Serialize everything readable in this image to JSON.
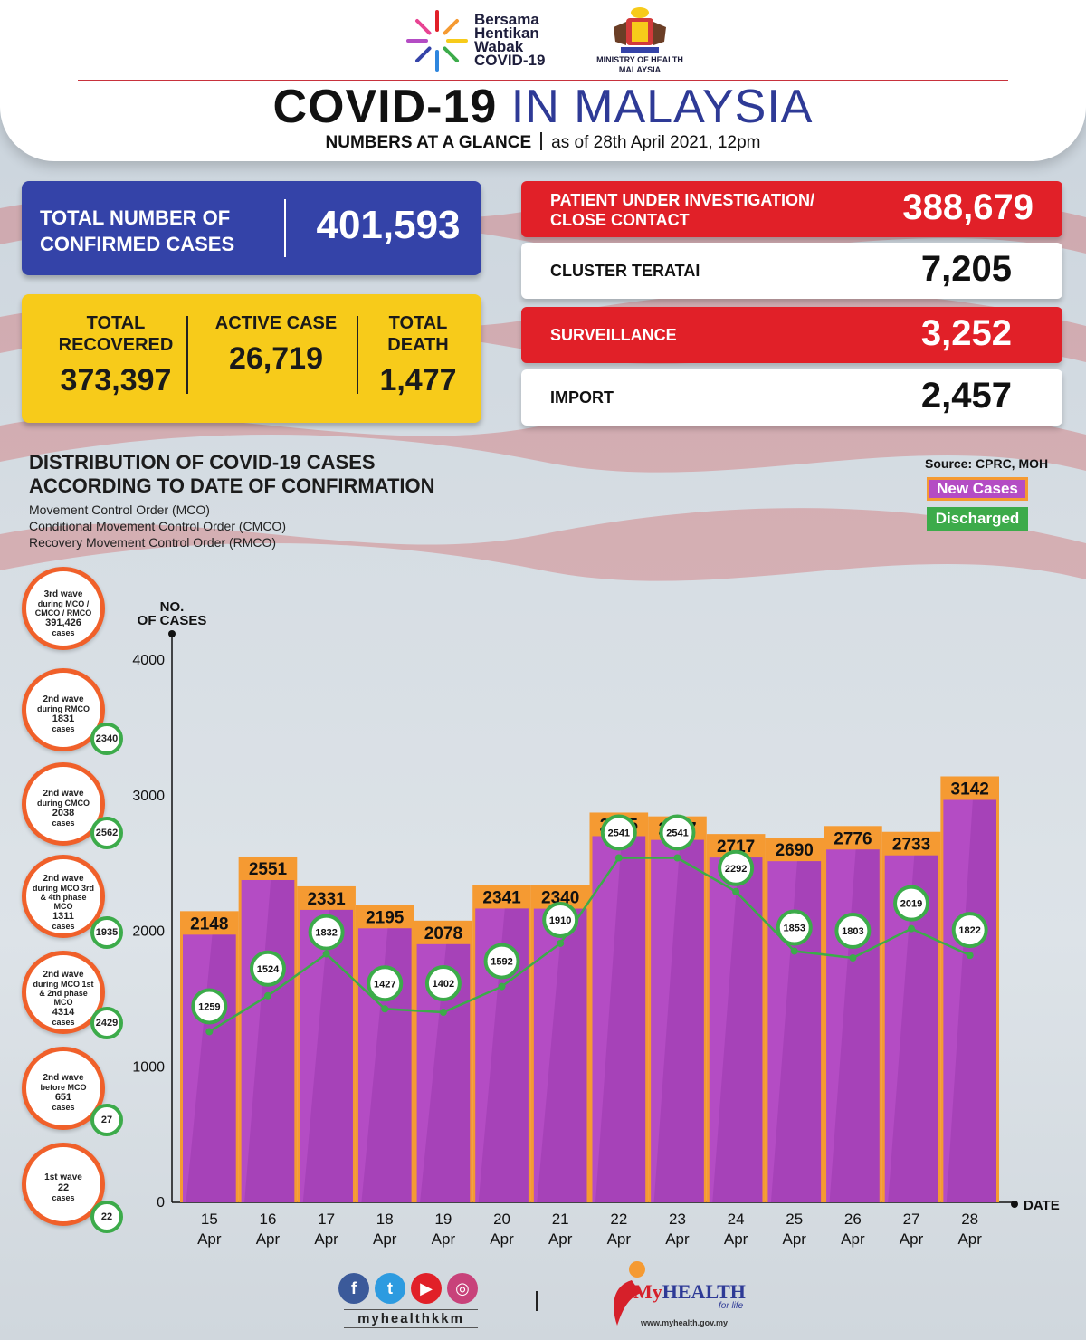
{
  "header": {
    "campaign_lines": [
      "Bersama",
      "Hentikan",
      "Wabak",
      "COVID-19"
    ],
    "ministry_lines": [
      "MINISTRY OF HEALTH",
      "MALAYSIA"
    ],
    "title_bold": "COVID-19",
    "title_light": "IN MALAYSIA",
    "subtitle_bold": "NUMBERS AT A GLANCE",
    "subtitle_date": "as of 28th April 2021, 12pm"
  },
  "confirmed": {
    "label": "TOTAL NUMBER OF CONFIRMED CASES",
    "value": "401,593"
  },
  "stats": [
    {
      "label": "TOTAL RECOVERED",
      "value": "373,397"
    },
    {
      "label": "ACTIVE CASE",
      "value": "26,719"
    },
    {
      "label": "TOTAL DEATH",
      "value": "1,477"
    }
  ],
  "right_boxes": [
    {
      "label": "PATIENT UNDER INVESTIGATION/ CLOSE CONTACT",
      "value": "388,679",
      "style": "red"
    },
    {
      "label": "CLUSTER TERATAI",
      "value": "7,205",
      "style": "white"
    },
    {
      "label": "SURVEILLANCE",
      "value": "3,252",
      "style": "red"
    },
    {
      "label": "IMPORT",
      "value": "2,457",
      "style": "white"
    }
  ],
  "distribution": {
    "title_line1": "DISTRIBUTION OF COVID-19 CASES",
    "title_line2": "ACCORDING TO DATE OF CONFIRMATION",
    "notes": [
      "Movement Control Order (MCO)",
      "Conditional Movement Control Order (CMCO)",
      "Recovery Movement Control Order (RMCO)"
    ],
    "source": "Source: CPRC, MOH",
    "legend_new": "New Cases",
    "legend_discharged": "Discharged"
  },
  "waves": [
    {
      "line1": "3rd wave",
      "line2": "during MCO / CMCO / RMCO",
      "count": "391,426",
      "unit": "cases",
      "badge": ""
    },
    {
      "line1": "2nd wave",
      "line2": "during RMCO",
      "count": "1831",
      "unit": "cases",
      "badge": "2340"
    },
    {
      "line1": "2nd wave",
      "line2": "during CMCO",
      "count": "2038",
      "unit": "cases",
      "badge": "2562"
    },
    {
      "line1": "2nd wave",
      "line2": "during MCO 3rd & 4th phase MCO",
      "count": "1311",
      "unit": "cases",
      "badge": "1935"
    },
    {
      "line1": "2nd wave",
      "line2": "during MCO 1st & 2nd phase MCO",
      "count": "4314",
      "unit": "cases",
      "badge": "2429"
    },
    {
      "line1": "2nd wave",
      "line2": "before MCO",
      "count": "651",
      "unit": "cases",
      "badge": "27"
    },
    {
      "line1": "1st wave",
      "line2": "",
      "count": "22",
      "unit": "cases",
      "badge": "22"
    }
  ],
  "chart_data": {
    "type": "bar",
    "ylabel": "NO. OF CASES",
    "xlabel": "DATE",
    "ylim": [
      0,
      4000
    ],
    "yticks": [
      0,
      1000,
      2000,
      3000,
      4000
    ],
    "categories": [
      [
        "15",
        "Apr"
      ],
      [
        "16",
        "Apr"
      ],
      [
        "17",
        "Apr"
      ],
      [
        "18",
        "Apr"
      ],
      [
        "19",
        "Apr"
      ],
      [
        "20",
        "Apr"
      ],
      [
        "21",
        "Apr"
      ],
      [
        "22",
        "Apr"
      ],
      [
        "23",
        "Apr"
      ],
      [
        "24",
        "Apr"
      ],
      [
        "25",
        "Apr"
      ],
      [
        "26",
        "Apr"
      ],
      [
        "27",
        "Apr"
      ],
      [
        "28",
        "Apr"
      ]
    ],
    "series": [
      {
        "name": "New Cases",
        "type": "bar",
        "color": "#b44cc4",
        "label_color": "#f59a32",
        "values": [
          2148,
          2551,
          2331,
          2195,
          2078,
          2341,
          2340,
          2875,
          2847,
          2717,
          2690,
          2776,
          2733,
          3142
        ]
      },
      {
        "name": "Discharged",
        "type": "line",
        "color": "#3cab4a",
        "values": [
          1259,
          1524,
          1832,
          1427,
          1402,
          1592,
          1910,
          2541,
          2541,
          2292,
          1853,
          1803,
          2019,
          1822
        ]
      }
    ],
    "grid": false,
    "legend": "top-right"
  },
  "footer": {
    "handle": "myhealthkkm",
    "social_icons": [
      "facebook-icon",
      "twitter-icon",
      "youtube-icon",
      "instagram-icon"
    ],
    "brand_my": "My",
    "brand_health": "HEALTH",
    "brand_tag": "for life",
    "url": "www.myhealth.gov.my"
  },
  "colors": {
    "blue": "#3443a8",
    "yellow": "#f7cb1a",
    "red": "#e12028",
    "purple": "#b44cc4",
    "orange": "#f59a32",
    "green": "#3cab4a"
  }
}
